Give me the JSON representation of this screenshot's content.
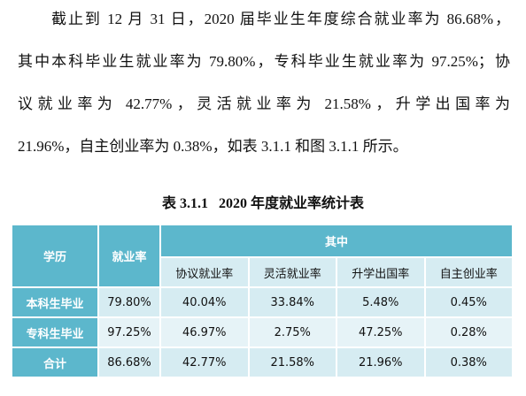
{
  "paragraph": {
    "lines": [
      "截止到 12 月 31 日，2020 届毕业生年度综合就业率为 86.68%，",
      "其中本科毕业生就业率为 79.80%，专科毕业生就业率为 97.25%；协",
      "议就业率为 42.77%，灵活就业率为 21.58%，升学出国率为",
      "21.96%，自主创业率为 0.38%，如表 3.1.1 和图 3.1.1 所示。"
    ]
  },
  "table": {
    "caption": "表 3.1.1   2020 年度就业率统计表",
    "header": {
      "degree": "学历",
      "rate": "就业率",
      "group": "其中",
      "sub": [
        "协议就业率",
        "灵活就业率",
        "升学出国率",
        "自主创业率"
      ]
    },
    "rows": [
      [
        "本科生毕业",
        "79.80%",
        "40.04%",
        "33.84%",
        "5.48%",
        "0.45%"
      ],
      [
        "专科生毕业",
        "97.25%",
        "46.97%",
        "2.75%",
        "47.25%",
        "0.28%"
      ],
      [
        "合计",
        "86.68%",
        "42.77%",
        "21.58%",
        "21.96%",
        "0.38%"
      ]
    ]
  }
}
